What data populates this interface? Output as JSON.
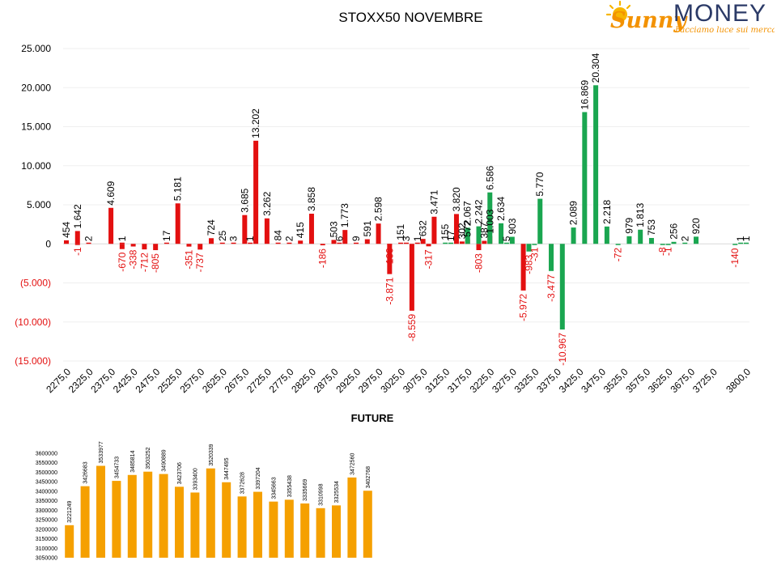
{
  "brand": {
    "script_word": "Sunny",
    "word": "MONEY",
    "tagline": "Facciamo luce sui mercati",
    "colors": {
      "orange": "#f39200",
      "navy": "#2b3a67",
      "sun": "#f7b500"
    }
  },
  "chart_data": [
    {
      "type": "bar",
      "title": "STOXX50 NOVEMBRE",
      "xlabel": "",
      "ylabel": "",
      "ylim": [
        -15000,
        25000
      ],
      "y_ticks": [
        {
          "value": 25000,
          "label": "25.000"
        },
        {
          "value": 20000,
          "label": "20.000"
        },
        {
          "value": 15000,
          "label": "15.000"
        },
        {
          "value": 10000,
          "label": "10.000"
        },
        {
          "value": 5000,
          "label": "5.000"
        },
        {
          "value": 0,
          "label": "0"
        },
        {
          "value": -5000,
          "label": "(5.000)"
        },
        {
          "value": -10000,
          "label": "(10.000)"
        },
        {
          "value": -15000,
          "label": "(15.000)"
        }
      ],
      "x_tick_labels": [
        "2275,0",
        "2325,0",
        "2375,0",
        "2425,0",
        "2475,0",
        "2525,0",
        "2575,0",
        "2625,0",
        "2675,0",
        "2725,0",
        "2775,0",
        "2825,0",
        "2875,0",
        "2925,0",
        "2975,0",
        "3025,0",
        "3075,0",
        "3125,0",
        "3175,0",
        "3225,0",
        "3275,0",
        "3325,0",
        "3375,0",
        "3425,0",
        "3475,0",
        "3525,0",
        "3575,0",
        "3625,0",
        "3675,0",
        "3725,0",
        "3800,0"
      ],
      "x_tick_strikes": [
        2275,
        2325,
        2375,
        2425,
        2475,
        2525,
        2575,
        2625,
        2675,
        2725,
        2775,
        2825,
        2875,
        2925,
        2975,
        3025,
        3075,
        3125,
        3175,
        3225,
        3275,
        3325,
        3375,
        3425,
        3475,
        3525,
        3575,
        3625,
        3675,
        3725,
        3800
      ],
      "colors": {
        "red": "#e31010",
        "green": "#1aa650",
        "negative_label": "#e31010"
      },
      "series": [
        {
          "color": "red",
          "points": [
            {
              "x": 2275,
              "value": 454,
              "label": "454"
            },
            {
              "x": 2300,
              "value": -1,
              "label": "-1"
            },
            {
              "x": 2300,
              "value": 1642,
              "label": "1.642"
            },
            {
              "x": 2325,
              "value": 2,
              "label": "2"
            },
            {
              "x": 2375,
              "value": 4609,
              "label": "4.609"
            },
            {
              "x": 2400,
              "value": 1,
              "label": "1"
            },
            {
              "x": 2400,
              "value": -670,
              "label": "-670"
            },
            {
              "x": 2425,
              "value": -338,
              "label": "-338"
            },
            {
              "x": 2450,
              "value": -712,
              "label": "-712"
            },
            {
              "x": 2475,
              "value": -805,
              "label": "-805"
            },
            {
              "x": 2500,
              "value": 17,
              "label": "17"
            },
            {
              "x": 2525,
              "value": 5181,
              "label": "5.181"
            },
            {
              "x": 2550,
              "value": -351,
              "label": "-351"
            },
            {
              "x": 2575,
              "value": -737,
              "label": "-737"
            },
            {
              "x": 2600,
              "value": 724,
              "label": "724"
            },
            {
              "x": 2625,
              "value": 25,
              "label": "25"
            },
            {
              "x": 2650,
              "value": 3,
              "label": "3"
            },
            {
              "x": 2675,
              "value": 3685,
              "label": "3.685"
            },
            {
              "x": 2687.5,
              "value": 1,
              "label": "1"
            },
            {
              "x": 2700,
              "value": 13202,
              "label": "13.202"
            },
            {
              "x": 2725,
              "value": 3262,
              "label": "3.262"
            },
            {
              "x": 2750,
              "value": 84,
              "label": "84"
            },
            {
              "x": 2775,
              "value": 2,
              "label": "2"
            },
            {
              "x": 2800,
              "value": 415,
              "label": "415"
            },
            {
              "x": 2825,
              "value": 3858,
              "label": "3.858"
            },
            {
              "x": 2850,
              "value": -186,
              "label": "-186"
            },
            {
              "x": 2875,
              "value": 503,
              "label": "503"
            },
            {
              "x": 2887.5,
              "value": 6,
              "label": "6"
            },
            {
              "x": 2900,
              "value": 1773,
              "label": "1.773"
            },
            {
              "x": 2925,
              "value": 9,
              "label": "9"
            },
            {
              "x": 2950,
              "value": 591,
              "label": "591"
            },
            {
              "x": 2975,
              "value": 2598,
              "label": "2.598"
            },
            {
              "x": 3000,
              "value": -3871,
              "label": "-3.871"
            },
            {
              "x": 3000,
              "value": -100,
              "label": "-100"
            },
            {
              "x": 3025,
              "value": 151,
              "label": "151"
            },
            {
              "x": 3037.5,
              "value": 3,
              "label": "3"
            },
            {
              "x": 3050,
              "value": -8559,
              "label": "-8.559"
            },
            {
              "x": 3062.5,
              "value": 1,
              "label": "1"
            },
            {
              "x": 3075,
              "value": 632,
              "label": "632"
            },
            {
              "x": 3087.5,
              "value": -317,
              "label": "-317"
            },
            {
              "x": 3100,
              "value": 3471,
              "label": "3.471"
            },
            {
              "x": 3150,
              "value": 3820,
              "label": "3.820"
            },
            {
              "x": 3162.5,
              "value": 302,
              "label": "302"
            },
            {
              "x": 3175,
              "value": 572,
              "label": "572"
            },
            {
              "x": 3200,
              "value": -803,
              "label": "-803"
            },
            {
              "x": 3212.5,
              "value": 387,
              "label": "387"
            },
            {
              "x": 3225,
              "value": 1003,
              "label": "1.003"
            },
            {
              "x": 3300,
              "value": -5972,
              "label": "-5.972"
            }
          ]
        },
        {
          "color": "green",
          "points": [
            {
              "x": 3125,
              "value": 155,
              "label": "155"
            },
            {
              "x": 3137.5,
              "value": 17,
              "label": "17"
            },
            {
              "x": 3175,
              "value": 2067,
              "label": "2.067"
            },
            {
              "x": 3200,
              "value": 2242,
              "label": "2.242"
            },
            {
              "x": 3225,
              "value": 6586,
              "label": "6.586"
            },
            {
              "x": 3250,
              "value": 2634,
              "label": "2.634"
            },
            {
              "x": 3262.5,
              "value": 5,
              "label": "5"
            },
            {
              "x": 3275,
              "value": 903,
              "label": "903"
            },
            {
              "x": 3312.5,
              "value": -983,
              "label": "-983"
            },
            {
              "x": 3325,
              "value": -31,
              "label": "-31"
            },
            {
              "x": 3337.5,
              "value": 5770,
              "label": "5.770"
            },
            {
              "x": 3362.5,
              "value": -3477,
              "label": "-3.477"
            },
            {
              "x": 3387.5,
              "value": -10967,
              "label": "-10.967"
            },
            {
              "x": 3412.5,
              "value": 2089,
              "label": "2.089"
            },
            {
              "x": 3437.5,
              "value": 16869,
              "label": "16.869"
            },
            {
              "x": 3462.5,
              "value": 20304,
              "label": "20.304"
            },
            {
              "x": 3487.5,
              "value": 2218,
              "label": "2.218"
            },
            {
              "x": 3512.5,
              "value": -72,
              "label": "-72"
            },
            {
              "x": 3537.5,
              "value": 979,
              "label": "979"
            },
            {
              "x": 3562.5,
              "value": 1813,
              "label": "1.813"
            },
            {
              "x": 3587.5,
              "value": 753,
              "label": "753"
            },
            {
              "x": 3612.5,
              "value": -8,
              "label": "-8"
            },
            {
              "x": 3625,
              "value": -1,
              "label": "-1"
            },
            {
              "x": 3637.5,
              "value": 256,
              "label": "256"
            },
            {
              "x": 3662.5,
              "value": 2,
              "label": "2"
            },
            {
              "x": 3687.5,
              "value": 920,
              "label": "920"
            },
            {
              "x": 3775,
              "value": -140,
              "label": "-140"
            },
            {
              "x": 3787.5,
              "value": 1,
              "label": "1"
            },
            {
              "x": 3800,
              "value": 1,
              "label": "1"
            }
          ]
        }
      ],
      "grid": true,
      "legend": "none"
    },
    {
      "type": "bar",
      "title": "FUTURE",
      "xlabel": "",
      "ylabel": "",
      "ylim": [
        3050000,
        3600000
      ],
      "y_tick_labels": [
        "3600000",
        "3550000",
        "3500000",
        "3450000",
        "3400000",
        "3350000",
        "3300000",
        "3250000",
        "3200000",
        "3150000",
        "3100000",
        "3050000"
      ],
      "color": "#f5a000",
      "values": [
        3221249,
        3426683,
        3533977,
        3454733,
        3485814,
        3503252,
        3490889,
        3423706,
        3393400,
        3520339,
        3447495,
        3372628,
        3397204,
        3345663,
        3355438,
        3335669,
        3310998,
        3325534,
        3472560,
        3402768
      ],
      "labels": [
        "3221249",
        "3426683",
        "3533977",
        "3454733",
        "3485814",
        "3503252",
        "3490889",
        "3423706",
        "3393400",
        "3520339",
        "3447495",
        "3372628",
        "3397204",
        "3345663",
        "3355438",
        "3335669",
        "3310998",
        "3325534",
        "3472560",
        "3402768"
      ],
      "grid": false,
      "legend": "none"
    }
  ]
}
